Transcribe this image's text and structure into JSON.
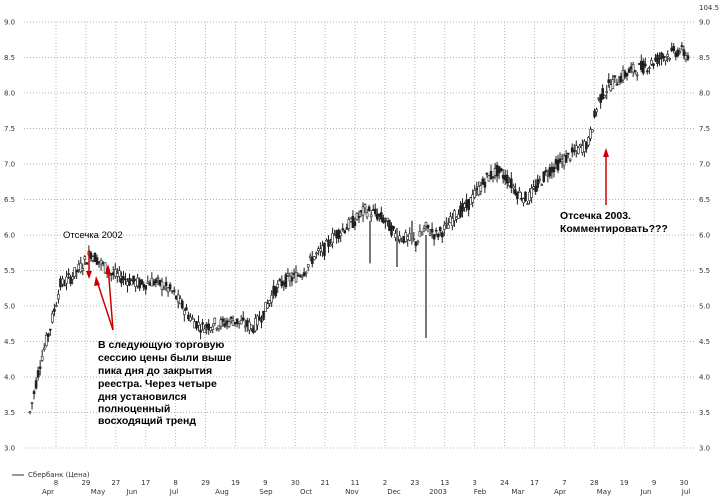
{
  "chart_data": {
    "type": "candlestick",
    "series": [
      {
        "name": "Сбербанк (Цена)",
        "values_ref": "x"
      }
    ],
    "ylim": [
      3.0,
      9.0
    ],
    "right_axis_top_label": "104.5",
    "y_ticks": [
      "3.0",
      "3.5",
      "4.0",
      "4.5",
      "5.0",
      "5.5",
      "6.0",
      "6.5",
      "7.0",
      "7.5",
      "8.0",
      "8.5",
      "9.0"
    ],
    "x_days": [
      "8",
      "29",
      "27",
      "17",
      "8",
      "29",
      "19",
      "9",
      "30",
      "21",
      "11",
      "2",
      "23",
      "13",
      "3",
      "24",
      "17",
      "7",
      "28",
      "19",
      "9",
      "30"
    ],
    "x_months": [
      "Apr",
      "May",
      "Jun",
      "Jul",
      "Aug",
      "Sep",
      "Oct",
      "Nov",
      "Dec",
      "2003",
      "Feb",
      "Mar",
      "Apr",
      "May",
      "Jun",
      "Jul"
    ],
    "grid": true,
    "legend_position": "bottom-left",
    "x": [
      "2002-04-08",
      "2002-04-15",
      "2002-04-22",
      "2002-04-29",
      "2002-05-06",
      "2002-05-13",
      "2002-05-20",
      "2002-05-27",
      "2002-06-03",
      "2002-06-10",
      "2002-06-17",
      "2002-06-24",
      "2002-07-01",
      "2002-07-08",
      "2002-07-15",
      "2002-07-22",
      "2002-07-29",
      "2002-08-05",
      "2002-08-12",
      "2002-08-19",
      "2002-08-26",
      "2002-09-02",
      "2002-09-09",
      "2002-09-16",
      "2002-09-23",
      "2002-09-30",
      "2002-10-07",
      "2002-10-14",
      "2002-10-21",
      "2002-10-28",
      "2002-11-04",
      "2002-11-11",
      "2002-11-18",
      "2002-11-25",
      "2002-12-02",
      "2002-12-09",
      "2002-12-16",
      "2002-12-23",
      "2002-12-30",
      "2003-01-06",
      "2003-01-13",
      "2003-01-20",
      "2003-01-27",
      "2003-02-03",
      "2003-02-10",
      "2003-02-17",
      "2003-02-24",
      "2003-03-03",
      "2003-03-10",
      "2003-03-17",
      "2003-03-24",
      "2003-03-31",
      "2003-04-07",
      "2003-04-14",
      "2003-04-21",
      "2003-04-28",
      "2003-05-05",
      "2003-05-12",
      "2003-05-19",
      "2003-05-26",
      "2003-06-02",
      "2003-06-09",
      "2003-06-16",
      "2003-06-23",
      "2003-06-30",
      "2003-07-07"
    ],
    "y": [
      3.5,
      4.2,
      4.7,
      5.3,
      5.4,
      5.55,
      5.75,
      5.6,
      5.45,
      5.4,
      5.35,
      5.3,
      5.35,
      5.3,
      5.2,
      5.0,
      4.8,
      4.7,
      4.75,
      4.75,
      4.8,
      4.75,
      4.7,
      4.9,
      5.2,
      5.35,
      5.4,
      5.5,
      5.7,
      5.8,
      6.0,
      6.1,
      6.2,
      6.35,
      6.3,
      6.2,
      6.0,
      5.95,
      5.9,
      6.1,
      6.0,
      6.1,
      6.3,
      6.4,
      6.6,
      6.8,
      6.9,
      6.8,
      6.6,
      6.5,
      6.7,
      6.9,
      7.0,
      7.1,
      7.2,
      7.3,
      7.9,
      8.1,
      8.2,
      8.3,
      8.35,
      8.4,
      8.5,
      8.55,
      8.6,
      8.5
    ]
  },
  "annotations": {
    "otsechka2002": "Отсечка 2002",
    "otsechka2003_line1": "Отсечка 2003.",
    "otsechka2003_line2": "Комментировать???",
    "note_lines": [
      "В следующую торговую",
      "сессию цены были выше",
      "пика дня до закрытия",
      "реестра. Через четыре",
      "дня установился",
      "полноценный",
      "восходящий тренд"
    ]
  },
  "legend_label": "Сбербанк (Цена)",
  "colors": {
    "candle": "#1f1f1f",
    "arrow": "#cc0000",
    "grid": "#b5b5b5",
    "spike": "#777777"
  }
}
